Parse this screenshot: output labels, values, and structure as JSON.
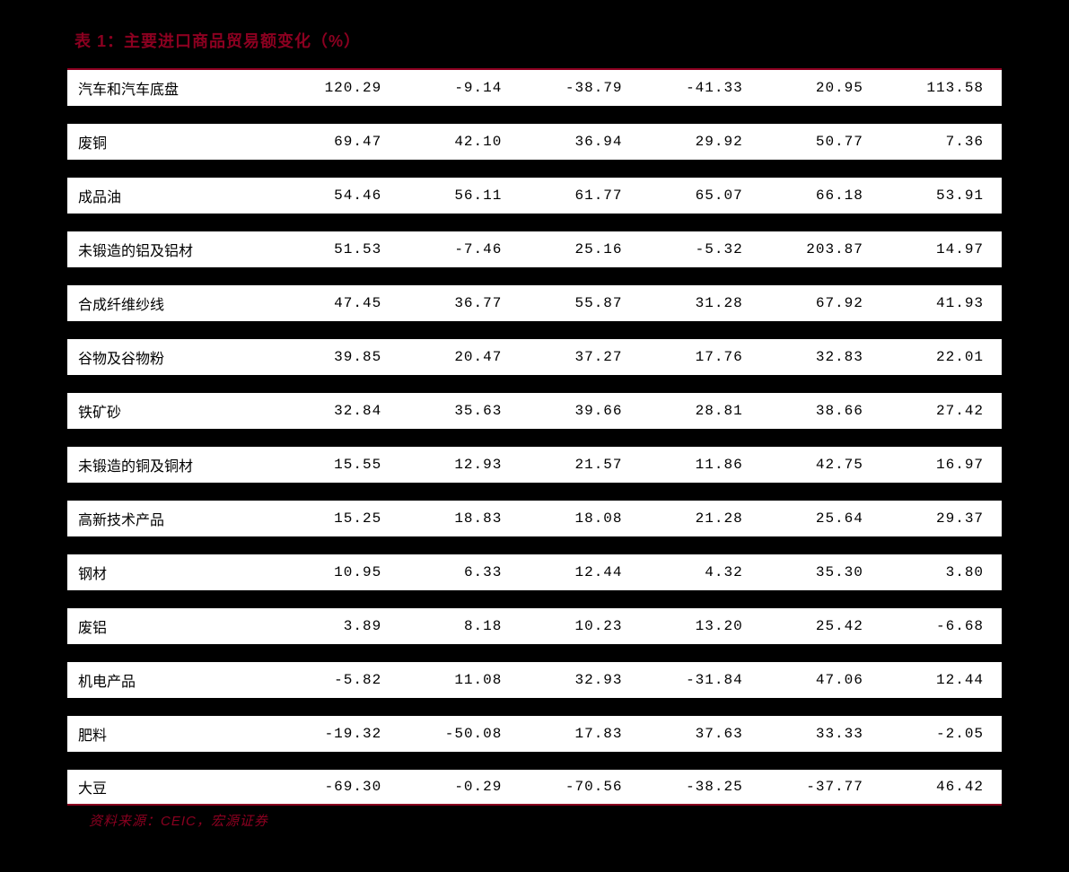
{
  "title": "表 1：主要进口商品贸易额变化（%）",
  "source": "资料来源：CEIC，宏源证券",
  "colors": {
    "accent": "#8b0020",
    "row_bg": "#ffffff",
    "page_bg": "#000000",
    "text": "#000000"
  },
  "table": {
    "rows": [
      {
        "label": "汽车和汽车底盘",
        "values": [
          "120.29",
          "-9.14",
          "-38.79",
          "-41.33",
          "20.95",
          "113.58"
        ]
      },
      {
        "label": "废铜",
        "values": [
          "69.47",
          "42.10",
          "36.94",
          "29.92",
          "50.77",
          "7.36"
        ]
      },
      {
        "label": "成品油",
        "values": [
          "54.46",
          "56.11",
          "61.77",
          "65.07",
          "66.18",
          "53.91"
        ]
      },
      {
        "label": "未锻造的铝及铝材",
        "values": [
          "51.53",
          "-7.46",
          "25.16",
          "-5.32",
          "203.87",
          "14.97"
        ]
      },
      {
        "label": "合成纤维纱线",
        "values": [
          "47.45",
          "36.77",
          "55.87",
          "31.28",
          "67.92",
          "41.93"
        ]
      },
      {
        "label": "谷物及谷物粉",
        "values": [
          "39.85",
          "20.47",
          "37.27",
          "17.76",
          "32.83",
          "22.01"
        ]
      },
      {
        "label": "铁矿砂",
        "values": [
          "32.84",
          "35.63",
          "39.66",
          "28.81",
          "38.66",
          "27.42"
        ]
      },
      {
        "label": "未锻造的铜及铜材",
        "values": [
          "15.55",
          "12.93",
          "21.57",
          "11.86",
          "42.75",
          "16.97"
        ]
      },
      {
        "label": "高新技术产品",
        "values": [
          "15.25",
          "18.83",
          "18.08",
          "21.28",
          "25.64",
          "29.37"
        ]
      },
      {
        "label": "钢材",
        "values": [
          "10.95",
          "6.33",
          "12.44",
          "4.32",
          "35.30",
          "3.80"
        ]
      },
      {
        "label": "废铝",
        "values": [
          "3.89",
          "8.18",
          "10.23",
          "13.20",
          "25.42",
          "-6.68"
        ]
      },
      {
        "label": "机电产品",
        "values": [
          "-5.82",
          "11.08",
          "32.93",
          "-31.84",
          "47.06",
          "12.44"
        ]
      },
      {
        "label": "肥料",
        "values": [
          "-19.32",
          "-50.08",
          "17.83",
          "37.63",
          "33.33",
          "-2.05"
        ]
      },
      {
        "label": "大豆",
        "values": [
          "-69.30",
          "-0.29",
          "-70.56",
          "-38.25",
          "-37.77",
          "46.42"
        ]
      }
    ]
  }
}
